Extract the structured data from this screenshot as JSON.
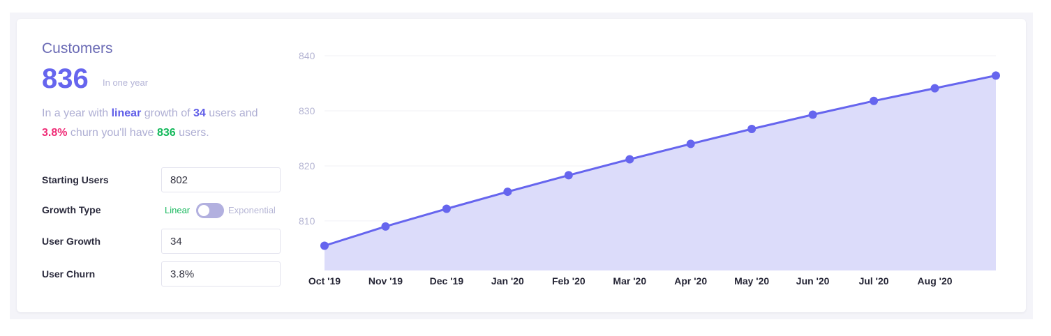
{
  "summary": {
    "title": "Customers",
    "value": "836",
    "value_caption": "In one year",
    "sentence": {
      "p1": "In a year with ",
      "growth_type": "linear",
      "p2": " growth of ",
      "growth": "34",
      "p3": " users and ",
      "churn": "3.8%",
      "p4": " churn you'll have ",
      "result": "836",
      "p5": " users."
    }
  },
  "form": {
    "starting_users": {
      "label": "Starting Users",
      "value": "802"
    },
    "growth_type": {
      "label": "Growth Type",
      "option_left": "Linear",
      "option_right": "Exponential",
      "selected": "Linear"
    },
    "user_growth": {
      "label": "User Growth",
      "value": "34"
    },
    "user_churn": {
      "label": "User Churn",
      "value": "3.8%"
    }
  },
  "colors": {
    "accent": "#6665ee",
    "area_fill": "#dcdcfa",
    "churn": "#ef2b76",
    "result": "#12b85a"
  },
  "chart_data": {
    "type": "area",
    "categories": [
      "Oct '19",
      "Nov '19",
      "Dec '19",
      "Jan '20",
      "Feb '20",
      "Mar '20",
      "Apr '20",
      "May '20",
      "Jun '20",
      "Jul '20",
      "Aug '20",
      ""
    ],
    "values": [
      805.5,
      809,
      812.2,
      815.3,
      818.3,
      821.2,
      824,
      826.7,
      829.3,
      831.8,
      834.1,
      836.4
    ],
    "yticks": [
      810,
      820,
      830,
      840
    ],
    "ylim": [
      801,
      840
    ],
    "grid": true,
    "legend": "none"
  }
}
